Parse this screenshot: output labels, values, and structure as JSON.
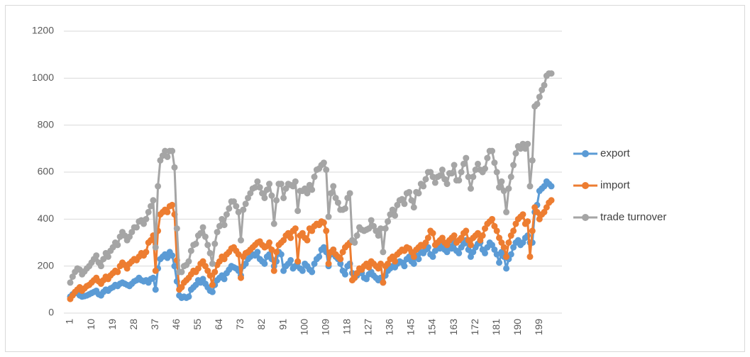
{
  "chart_data": {
    "type": "line",
    "categories": [
      1,
      null,
      null,
      null,
      null,
      null,
      null,
      null,
      null,
      10,
      null,
      null,
      null,
      null,
      null,
      null,
      null,
      null,
      19,
      null,
      null,
      null,
      null,
      null,
      null,
      null,
      null,
      28,
      null,
      null,
      null,
      null,
      null,
      null,
      null,
      null,
      37,
      null,
      null,
      null,
      null,
      null,
      null,
      null,
      null,
      46,
      null,
      null,
      null,
      null,
      null,
      null,
      null,
      null,
      55,
      null,
      null,
      null,
      null,
      null,
      null,
      null,
      null,
      64,
      null,
      null,
      null,
      null,
      null,
      null,
      null,
      null,
      73,
      null,
      null,
      null,
      null,
      null,
      null,
      null,
      null,
      82,
      null,
      null,
      null,
      null,
      null,
      null,
      null,
      null,
      91,
      null,
      null,
      null,
      null,
      null,
      null,
      null,
      null,
      100,
      null,
      null,
      null,
      null,
      null,
      null,
      null,
      null,
      109,
      null,
      null,
      null,
      null,
      null,
      null,
      null,
      null,
      118,
      null,
      null,
      null,
      null,
      null,
      null,
      null,
      null,
      127,
      null,
      null,
      null,
      null,
      null,
      null,
      null,
      null,
      136,
      null,
      null,
      null,
      null,
      null,
      null,
      null,
      null,
      145,
      null,
      null,
      null,
      null,
      null,
      null,
      null,
      null,
      154,
      null,
      null,
      null,
      null,
      null,
      null,
      null,
      null,
      163,
      null,
      null,
      null,
      null,
      null,
      null,
      null,
      null,
      172,
      null,
      null,
      null,
      null,
      null,
      null,
      null,
      null,
      181,
      null,
      null,
      null,
      null,
      null,
      null,
      null,
      null,
      190,
      null,
      null,
      null,
      null,
      null,
      null,
      null,
      null,
      199,
      null,
      null,
      null,
      null,
      null
    ],
    "series": [
      {
        "name": "export",
        "color": "#5b9bd5",
        "values": [
          70,
          80,
          85,
          90,
          75,
          70,
          72,
          75,
          80,
          85,
          90,
          95,
          80,
          75,
          90,
          100,
          95,
          105,
          110,
          120,
          115,
          125,
          130,
          125,
          120,
          115,
          125,
          135,
          140,
          150,
          140,
          135,
          140,
          130,
          145,
          150,
          100,
          190,
          230,
          240,
          250,
          235,
          260,
          245,
          200,
          135,
          75,
          65,
          70,
          65,
          70,
          100,
          110,
          120,
          140,
          130,
          145,
          125,
          110,
          95,
          90,
          120,
          140,
          150,
          160,
          145,
          170,
          185,
          200,
          195,
          190,
          180,
          160,
          200,
          210,
          230,
          240,
          250,
          245,
          260,
          230,
          220,
          210,
          240,
          250,
          230,
          200,
          220,
          260,
          250,
          180,
          200,
          210,
          225,
          190,
          200,
          215,
          190,
          180,
          210,
          200,
          185,
          175,
          210,
          230,
          240,
          270,
          280,
          260,
          200,
          250,
          270,
          240,
          230,
          210,
          180,
          165,
          200,
          210,
          170,
          150,
          160,
          175,
          170,
          150,
          145,
          165,
          175,
          160,
          150,
          140,
          150,
          130,
          160,
          180,
          190,
          200,
          195,
          210,
          220,
          215,
          200,
          230,
          240,
          220,
          210,
          245,
          230,
          260,
          255,
          270,
          280,
          250,
          240,
          265,
          280,
          275,
          290,
          270,
          260,
          285,
          275,
          300,
          265,
          255,
          280,
          295,
          310,
          270,
          240,
          260,
          280,
          295,
          300,
          270,
          255,
          280,
          300,
          290,
          270,
          250,
          215,
          260,
          240,
          190,
          230,
          250,
          280,
          300,
          310,
          290,
          300,
          320,
          330,
          300,
          300,
          430,
          460,
          520,
          530,
          540,
          560,
          550,
          540
        ]
      },
      {
        "name": "import",
        "color": "#ed7d31",
        "values": [
          60,
          75,
          90,
          100,
          110,
          95,
          105,
          115,
          120,
          130,
          140,
          150,
          135,
          125,
          140,
          155,
          145,
          160,
          170,
          180,
          175,
          200,
          215,
          205,
          190,
          210,
          220,
          230,
          225,
          240,
          255,
          245,
          260,
          300,
          310,
          330,
          180,
          350,
          420,
          430,
          440,
          430,
          455,
          460,
          420,
          225,
          100,
          110,
          130,
          140,
          150,
          165,
          180,
          175,
          190,
          210,
          220,
          200,
          180,
          160,
          120,
          175,
          205,
          220,
          240,
          230,
          250,
          260,
          275,
          280,
          265,
          250,
          150,
          240,
          255,
          260,
          270,
          280,
          290,
          300,
          305,
          290,
          280,
          285,
          300,
          270,
          180,
          260,
          290,
          300,
          310,
          330,
          340,
          320,
          350,
          360,
          220,
          330,
          340,
          320,
          310,
          360,
          350,
          370,
          380,
          375,
          390,
          385,
          350,
          210,
          260,
          270,
          250,
          240,
          230,
          260,
          280,
          290,
          300,
          140,
          150,
          170,
          190,
          185,
          200,
          210,
          195,
          220,
          210,
          200,
          190,
          210,
          130,
          200,
          210,
          230,
          240,
          220,
          250,
          260,
          270,
          265,
          280,
          275,
          260,
          240,
          270,
          280,
          290,
          285,
          300,
          320,
          350,
          340,
          290,
          300,
          310,
          320,
          300,
          290,
          310,
          320,
          330,
          300,
          310,
          320,
          340,
          350,
          310,
          290,
          320,
          330,
          340,
          310,
          330,
          360,
          380,
          390,
          400,
          370,
          350,
          320,
          300,
          280,
          240,
          300,
          330,
          350,
          380,
          400,
          410,
          420,
          380,
          390,
          240,
          350,
          450,
          430,
          400,
          420,
          430,
          450,
          470,
          480
        ]
      },
      {
        "name": "trade turnover",
        "color": "#a5a5a5",
        "values": [
          130,
          155,
          175,
          190,
          185,
          165,
          177,
          190,
          200,
          215,
          230,
          245,
          215,
          200,
          230,
          255,
          240,
          265,
          280,
          300,
          290,
          325,
          345,
          330,
          310,
          325,
          345,
          365,
          365,
          390,
          395,
          380,
          400,
          430,
          455,
          480,
          280,
          540,
          650,
          670,
          690,
          665,
          690,
          690,
          620,
          360,
          175,
          175,
          200,
          205,
          220,
          265,
          290,
          295,
          330,
          340,
          365,
          325,
          290,
          255,
          210,
          295,
          345,
          370,
          400,
          375,
          420,
          445,
          475,
          475,
          455,
          430,
          310,
          440,
          465,
          490,
          510,
          530,
          535,
          560,
          535,
          510,
          490,
          525,
          550,
          500,
          380,
          480,
          550,
          550,
          490,
          530,
          550,
          545,
          540,
          560,
          435,
          520,
          520,
          530,
          510,
          545,
          525,
          580,
          610,
          615,
          630,
          640,
          610,
          410,
          510,
          540,
          490,
          470,
          440,
          440,
          445,
          490,
          510,
          310,
          300,
          330,
          365,
          355,
          350,
          355,
          360,
          395,
          370,
          350,
          330,
          360,
          260,
          360,
          390,
          420,
          440,
          415,
          460,
          480,
          485,
          465,
          510,
          515,
          480,
          450,
          515,
          510,
          550,
          540,
          570,
          600,
          600,
          580,
          555,
          580,
          585,
          610,
          570,
          550,
          595,
          595,
          630,
          565,
          565,
          600,
          635,
          660,
          580,
          530,
          580,
          610,
          635,
          610,
          600,
          615,
          660,
          690,
          690,
          640,
          600,
          535,
          560,
          520,
          430,
          530,
          580,
          630,
          680,
          710,
          700,
          720,
          700,
          720,
          540,
          650,
          880,
          890,
          920,
          950,
          970,
          1010,
          1020,
          1020
        ]
      }
    ],
    "ylim": [
      0,
      1200
    ],
    "yticks": [
      0,
      200,
      400,
      600,
      800,
      1000,
      1200
    ],
    "grid": true,
    "legend": "right"
  }
}
